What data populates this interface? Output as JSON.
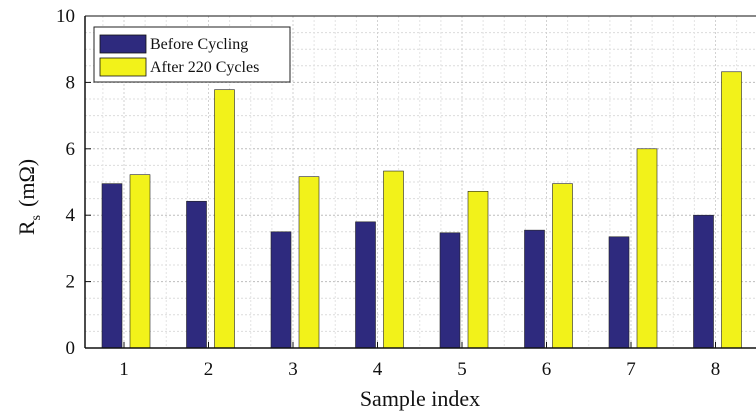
{
  "chart_data": {
    "type": "bar",
    "xlabel": "Sample index",
    "ylabel_main": "R",
    "ylabel_sub": "s",
    "ylabel_unit": "(mΩ)",
    "ylim": [
      0,
      10
    ],
    "yticks": [
      "0",
      "2",
      "4",
      "6",
      "8",
      "10"
    ],
    "categories": [
      "1",
      "2",
      "3",
      "4",
      "5",
      "6",
      "7",
      "8"
    ],
    "grid": true,
    "legend_position": "top-left",
    "series": [
      {
        "name": "Before Cycling",
        "color": "#2e2a7e",
        "values": [
          4.95,
          4.42,
          3.5,
          3.8,
          3.47,
          3.55,
          3.35,
          4.0
        ]
      },
      {
        "name": "After 220 Cycles",
        "color": "#f2f21a",
        "values": [
          5.22,
          7.78,
          5.16,
          5.33,
          4.72,
          4.95,
          6.0,
          8.32
        ]
      }
    ]
  }
}
